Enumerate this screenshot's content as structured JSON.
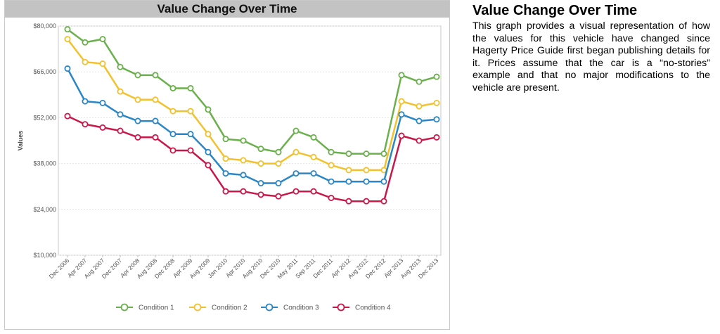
{
  "chart_title": "Value Change Over Time",
  "description": {
    "title": "Value Change Over Time",
    "body": "This graph provides a visual representation of how the values for this vehicle have changed since Hagerty Price Guide first began publishing details for it. Prices assume that the car is a “no-stories” example and that no major modifications to the vehicle are present."
  },
  "chart_data": {
    "type": "line",
    "title": "Value Change Over Time",
    "ylabel": "Values",
    "xlabel": "",
    "ylim": [
      10000,
      80000
    ],
    "yticks": [
      10000,
      24000,
      38000,
      52000,
      66000,
      80000
    ],
    "ytick_labels": [
      "$10,000",
      "$24,000",
      "$38,000",
      "$52,000",
      "$66,000",
      "$80,000"
    ],
    "grid": "horizontal",
    "legend_position": "bottom",
    "categories": [
      "Dec 2006",
      "Apr 2007",
      "Aug 2007",
      "Dec 2007",
      "Apr 2008",
      "Aug 2008",
      "Dec 2008",
      "Apr 2009",
      "Aug 2009",
      "Jan 2010",
      "Apr 2010",
      "Aug 2010",
      "Dec 2010",
      "May 2011",
      "Sep 2011",
      "Dec 2011",
      "Apr 2012",
      "Aug 2012",
      "Dec 2012",
      "Apr 2013",
      "Aug 2013",
      "Dec 2013"
    ],
    "series": [
      {
        "name": "Condition 1",
        "color": "#6ab04c",
        "values": [
          79000,
          75000,
          76000,
          67500,
          65000,
          65000,
          61000,
          61000,
          54500,
          45500,
          45000,
          42500,
          41500,
          48000,
          46000,
          41500,
          41000,
          41000,
          41000,
          65000,
          63000,
          64500
        ]
      },
      {
        "name": "Condition 2",
        "color": "#f2c12e",
        "values": [
          76000,
          69000,
          68500,
          60000,
          57500,
          57500,
          54000,
          54000,
          47000,
          39500,
          39000,
          38000,
          38000,
          41500,
          40000,
          37500,
          36000,
          36000,
          36000,
          57000,
          55500,
          56500
        ]
      },
      {
        "name": "Condition 3",
        "color": "#2b86c5",
        "values": [
          67000,
          57000,
          56500,
          53000,
          51000,
          51000,
          47000,
          47000,
          41500,
          35000,
          34500,
          32000,
          32000,
          35000,
          35000,
          32500,
          32500,
          32500,
          32500,
          53000,
          51000,
          51500
        ]
      },
      {
        "name": "Condition 4",
        "color": "#c8184a",
        "values": [
          52500,
          50000,
          49000,
          48000,
          46000,
          46000,
          42000,
          42000,
          37500,
          29500,
          29500,
          28500,
          28000,
          29500,
          29500,
          27500,
          26500,
          26500,
          26500,
          46500,
          45000,
          46000
        ]
      }
    ]
  }
}
